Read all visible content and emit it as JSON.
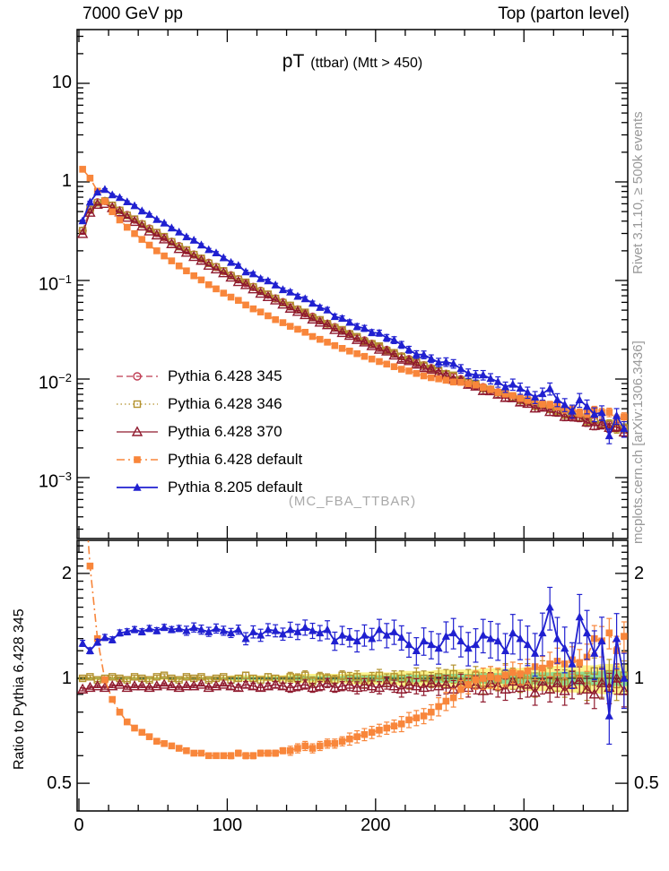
{
  "chart_data": {
    "type": "line",
    "top_left": "7000 GeV pp",
    "top_right": "Top (parton level)",
    "title_main": "pT",
    "title_paren": "(ttbar) (Mtt > 450)",
    "watermark": "(MC_FBA_TTBAR)",
    "side_notes": {
      "top": "Rivet 3.1.10, ≥ 500k events",
      "bottom": "mcplots.cern.ch [arXiv:1306.3436]"
    },
    "xlabel": "",
    "xlim": [
      0,
      370
    ],
    "x_major_ticks": [
      0,
      100,
      200,
      300
    ],
    "x_major_tick_labels": [
      "0",
      "100",
      "200",
      "300"
    ],
    "x_minor_step": 20,
    "main_panel": {
      "ylog": true,
      "ylim": [
        0.00024,
        35
      ],
      "ytick_values": [
        10,
        1,
        0.1,
        0.01,
        0.001
      ],
      "ytick_labels": [
        "10",
        "1",
        "10^-1",
        "10^-2",
        "10^-3"
      ]
    },
    "ratio_panel": {
      "ylabel": "Ratio to Pythia 6.428 345",
      "ylog": true,
      "ylim": [
        0.416,
        2.49
      ],
      "ytick_values": [
        2,
        1,
        0.5
      ],
      "ytick_labels": [
        "2",
        "1",
        "0.5"
      ],
      "reference": "Pythia 6.428 345",
      "band_outer_color": "#fbf38a",
      "band_inner_color": "#8fdc8f",
      "unity_line_color": "#000000"
    },
    "x": [
      2.5,
      7.5,
      12.5,
      17.5,
      22.5,
      27.5,
      32.5,
      37.5,
      42.5,
      47.5,
      52.5,
      57.5,
      62.5,
      67.5,
      72.5,
      77.5,
      82.5,
      87.5,
      92.5,
      97.5,
      102.5,
      107.5,
      112.5,
      117.5,
      122.5,
      127.5,
      132.5,
      137.5,
      142.5,
      147.5,
      152.5,
      157.5,
      162.5,
      167.5,
      172.5,
      177.5,
      182.5,
      187.5,
      192.5,
      197.5,
      202.5,
      207.5,
      212.5,
      217.5,
      222.5,
      227.5,
      232.5,
      237.5,
      242.5,
      247.5,
      252.5,
      257.5,
      262.5,
      267.5,
      272.5,
      277.5,
      282.5,
      287.5,
      292.5,
      297.5,
      302.5,
      307.5,
      312.5,
      317.5,
      322.5,
      327.5,
      332.5,
      337.5,
      342.5,
      347.5,
      352.5,
      357.5,
      362.5,
      367.5
    ],
    "ref_values": [
      0.32,
      0.52,
      0.62,
      0.64,
      0.573,
      0.514,
      0.462,
      0.415,
      0.373,
      0.336,
      0.303,
      0.273,
      0.247,
      0.223,
      0.202,
      0.183,
      0.166,
      0.151,
      0.137,
      0.124,
      0.113,
      0.103,
      0.094,
      0.0859,
      0.0785,
      0.0718,
      0.0657,
      0.0602,
      0.0553,
      0.0508,
      0.0466,
      0.0429,
      0.0395,
      0.0364,
      0.0336,
      0.031,
      0.0287,
      0.0266,
      0.0246,
      0.0228,
      0.0212,
      0.0197,
      0.0183,
      0.017,
      0.0159,
      0.0148,
      0.0138,
      0.0129,
      0.0121,
      0.0113,
      0.0106,
      0.00995,
      0.00934,
      0.00878,
      0.00826,
      0.00779,
      0.00734,
      0.00693,
      0.00655,
      0.00619,
      0.00586,
      0.00555,
      0.00526,
      0.005,
      0.00475,
      0.00451,
      0.0043,
      0.0041,
      0.00391,
      0.00373,
      0.00357,
      0.00341,
      0.00327,
      0.00313
    ],
    "err_rel_blue": [
      0.02,
      0.02,
      0.02,
      0.02,
      0.02,
      0.02,
      0.02,
      0.02,
      0.02,
      0.02,
      0.02,
      0.02,
      0.02,
      0.02,
      0.03,
      0.03,
      0.03,
      0.03,
      0.03,
      0.03,
      0.03,
      0.03,
      0.04,
      0.04,
      0.04,
      0.04,
      0.04,
      0.04,
      0.05,
      0.05,
      0.05,
      0.05,
      0.05,
      0.06,
      0.06,
      0.06,
      0.06,
      0.07,
      0.07,
      0.07,
      0.07,
      0.08,
      0.08,
      0.08,
      0.08,
      0.09,
      0.09,
      0.09,
      0.1,
      0.1,
      0.1,
      0.1,
      0.11,
      0.11,
      0.11,
      0.12,
      0.12,
      0.12,
      0.13,
      0.13,
      0.13,
      0.14,
      0.14,
      0.14,
      0.15,
      0.15,
      0.15,
      0.16,
      0.16,
      0.16,
      0.17,
      0.17,
      0.18,
      0.18
    ],
    "err_rel_other": [
      0.01,
      0.01,
      0.01,
      0.01,
      0.01,
      0.01,
      0.01,
      0.01,
      0.01,
      0.01,
      0.01,
      0.01,
      0.01,
      0.01,
      0.01,
      0.01,
      0.01,
      0.01,
      0.01,
      0.01,
      0.02,
      0.02,
      0.02,
      0.02,
      0.02,
      0.02,
      0.02,
      0.02,
      0.03,
      0.03,
      0.03,
      0.03,
      0.03,
      0.03,
      0.03,
      0.03,
      0.04,
      0.04,
      0.04,
      0.04,
      0.04,
      0.04,
      0.04,
      0.05,
      0.05,
      0.05,
      0.05,
      0.05,
      0.06,
      0.06,
      0.06,
      0.06,
      0.06,
      0.06,
      0.07,
      0.07,
      0.07,
      0.07,
      0.07,
      0.07,
      0.08,
      0.08,
      0.08,
      0.08,
      0.09,
      0.09,
      0.09,
      0.09,
      0.09,
      0.09,
      0.1,
      0.1,
      0.1,
      0.1
    ],
    "series": [
      {
        "name": "Pythia 6.428 345",
        "color": "#bf3b52",
        "marker": "circle-open",
        "dash": "7,4",
        "lw": 1.3,
        "is_ref": true,
        "err": "other",
        "ratio": null
      },
      {
        "name": "Pythia 6.428 346",
        "color": "#b3922f",
        "marker": "square-open",
        "dash": "1.5,3",
        "lw": 1.3,
        "is_ref": false,
        "err": "other",
        "ratio": [
          1.0,
          1.01,
          0.99,
          1.0,
          1.01,
          1.0,
          0.99,
          1.01,
          1.0,
          0.99,
          1.01,
          1.02,
          1.0,
          0.99,
          1.01,
          1.0,
          1.01,
          0.99,
          1.0,
          1.01,
          0.99,
          1.0,
          1.02,
          1.0,
          0.99,
          1.01,
          1.0,
          0.99,
          1.01,
          1.0,
          1.02,
          0.98,
          1.01,
          1.0,
          0.99,
          1.02,
          1.0,
          1.01,
          0.98,
          1.0,
          1.02,
          0.99,
          1.01,
          1.0,
          0.98,
          1.02,
          1.0,
          0.99,
          1.01,
          1.0,
          1.03,
          0.98,
          1.0,
          1.02,
          0.97,
          1.01,
          0.99,
          1.03,
          1.0,
          0.98,
          1.02,
          0.96,
          1.04,
          0.99,
          1.01,
          0.97,
          1.03,
          1.0,
          0.95,
          1.05,
          0.98,
          1.03,
          0.96,
          1.02
        ]
      },
      {
        "name": "Pythia 6.428 370",
        "color": "#8f1a2e",
        "marker": "triangle-open",
        "dash": "",
        "lw": 1.3,
        "is_ref": false,
        "err": "other",
        "ratio": [
          0.93,
          0.94,
          0.95,
          0.94,
          0.95,
          0.96,
          0.94,
          0.95,
          0.95,
          0.94,
          0.95,
          0.96,
          0.95,
          0.94,
          0.95,
          0.95,
          0.96,
          0.94,
          0.95,
          0.96,
          0.95,
          0.94,
          0.96,
          0.95,
          0.94,
          0.95,
          0.96,
          0.95,
          0.94,
          0.95,
          0.96,
          0.94,
          0.95,
          0.97,
          0.94,
          0.95,
          0.96,
          0.94,
          0.96,
          0.95,
          0.94,
          0.97,
          0.95,
          0.93,
          0.96,
          0.95,
          0.94,
          0.97,
          0.95,
          0.96,
          0.93,
          0.97,
          0.94,
          0.96,
          0.92,
          0.97,
          0.95,
          0.93,
          0.98,
          0.94,
          0.96,
          0.91,
          0.98,
          0.93,
          0.97,
          0.92,
          0.96,
          0.99,
          0.93,
          0.9,
          0.97,
          0.94,
          1.0,
          0.92
        ]
      },
      {
        "name": "Pythia 6.428 default",
        "color": "#f8863b",
        "marker": "square-fill",
        "dash": "9,4,2,4",
        "lw": 1.6,
        "is_ref": false,
        "err": "other",
        "ratio": [
          4.2,
          2.1,
          1.3,
          0.99,
          0.87,
          0.8,
          0.75,
          0.72,
          0.7,
          0.68,
          0.66,
          0.65,
          0.64,
          0.63,
          0.62,
          0.61,
          0.61,
          0.6,
          0.6,
          0.6,
          0.6,
          0.61,
          0.6,
          0.6,
          0.61,
          0.61,
          0.61,
          0.62,
          0.62,
          0.63,
          0.64,
          0.63,
          0.64,
          0.65,
          0.65,
          0.66,
          0.67,
          0.68,
          0.69,
          0.7,
          0.71,
          0.72,
          0.73,
          0.74,
          0.76,
          0.77,
          0.78,
          0.8,
          0.83,
          0.86,
          0.88,
          0.93,
          0.96,
          0.99,
          1.0,
          1.01,
          1.0,
          1.02,
          1.04,
          1.03,
          1.05,
          1.08,
          1.07,
          1.1,
          1.12,
          1.1,
          1.13,
          1.11,
          1.15,
          1.3,
          1.28,
          1.35,
          1.2,
          1.32
        ]
      },
      {
        "name": "Pythia 8.205 default",
        "color": "#2020d0",
        "marker": "triangle-fill",
        "dash": "",
        "lw": 1.8,
        "is_ref": false,
        "err": "blue",
        "ratio": [
          1.26,
          1.2,
          1.27,
          1.31,
          1.29,
          1.35,
          1.36,
          1.38,
          1.36,
          1.39,
          1.37,
          1.4,
          1.38,
          1.39,
          1.37,
          1.4,
          1.38,
          1.36,
          1.39,
          1.37,
          1.35,
          1.38,
          1.3,
          1.36,
          1.33,
          1.38,
          1.37,
          1.34,
          1.38,
          1.36,
          1.4,
          1.37,
          1.35,
          1.38,
          1.28,
          1.33,
          1.31,
          1.28,
          1.33,
          1.3,
          1.38,
          1.33,
          1.36,
          1.31,
          1.25,
          1.2,
          1.28,
          1.25,
          1.22,
          1.32,
          1.35,
          1.28,
          1.22,
          1.25,
          1.33,
          1.3,
          1.28,
          1.2,
          1.35,
          1.3,
          1.25,
          1.18,
          1.35,
          1.6,
          1.3,
          1.22,
          1.1,
          1.5,
          1.35,
          1.18,
          1.28,
          0.78,
          1.3,
          1.0
        ]
      }
    ]
  }
}
